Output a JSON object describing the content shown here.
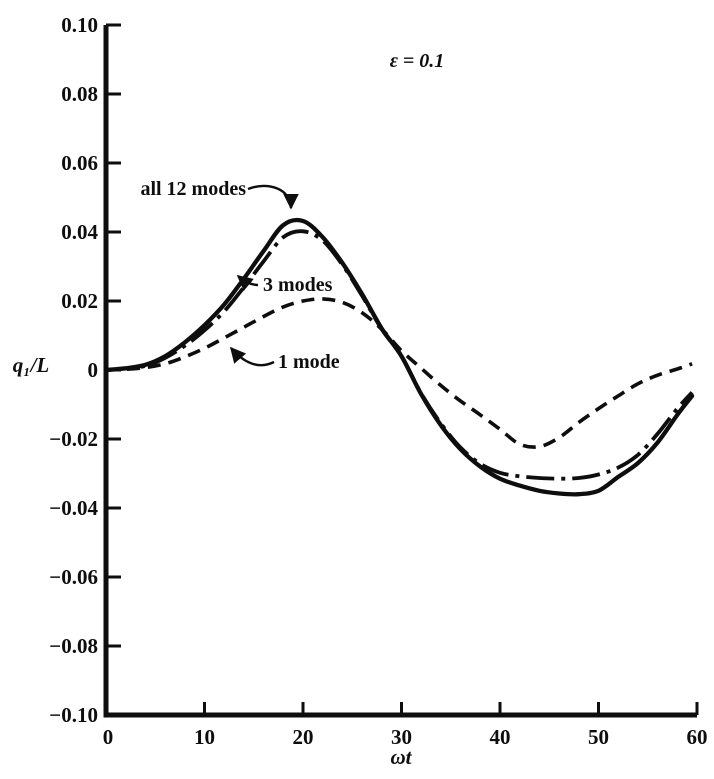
{
  "figure": {
    "background": "#ffffff",
    "ink": "#0e0e0e"
  },
  "chart_data": {
    "type": "line",
    "title": "",
    "xlabel": "ωt",
    "ylabel": "q₁/L",
    "xlim": [
      0,
      60
    ],
    "ylim": [
      -0.1,
      0.1
    ],
    "grid": false,
    "legend_position": "inline-annotations",
    "x_ticks": [
      0,
      10,
      20,
      30,
      40,
      50,
      60
    ],
    "x_tick_labels": [
      "0",
      "10",
      "20",
      "30",
      "40",
      "50",
      "60"
    ],
    "y_ticks": [
      0.1,
      0.08,
      0.06,
      0.04,
      0.02,
      0,
      -0.02,
      -0.04,
      -0.06,
      -0.08,
      -0.1
    ],
    "y_tick_labels": [
      "0.10",
      "0.08",
      "0.06",
      "0.04",
      "0.02",
      "0",
      "−0.02",
      "−0.04",
      "−0.06",
      "−0.08",
      "−0.10"
    ],
    "annotations": {
      "epsilon": {
        "text": "ε = 0.1"
      }
    },
    "series": [
      {
        "name": "all 12 modes",
        "style": "solid",
        "x": [
          0,
          2,
          4,
          6,
          8,
          10,
          12,
          14,
          16,
          18,
          20,
          22,
          24,
          26,
          28,
          30,
          32,
          34,
          36,
          38,
          40,
          42,
          44,
          46,
          48,
          50,
          52,
          54,
          56,
          58,
          59.5
        ],
        "y": [
          0,
          0.0005,
          0.0015,
          0.004,
          0.008,
          0.013,
          0.019,
          0.0265,
          0.0345,
          0.042,
          0.0432,
          0.0385,
          0.031,
          0.022,
          0.012,
          0.004,
          -0.007,
          -0.016,
          -0.023,
          -0.028,
          -0.0315,
          -0.0335,
          -0.035,
          -0.0358,
          -0.036,
          -0.035,
          -0.031,
          -0.027,
          -0.021,
          -0.013,
          -0.0075
        ]
      },
      {
        "name": "3 modes",
        "style": "dash-dot",
        "x": [
          0,
          2,
          4,
          6,
          8,
          10,
          12,
          14,
          16,
          18,
          20,
          22,
          24,
          26,
          28,
          30,
          32,
          34,
          36,
          38,
          40,
          42,
          44,
          46,
          48,
          50,
          52,
          54,
          56,
          58,
          59.5
        ],
        "y": [
          0,
          0.0004,
          0.0012,
          0.0035,
          0.007,
          0.0115,
          0.017,
          0.024,
          0.0315,
          0.0385,
          0.0402,
          0.0375,
          0.0305,
          0.0215,
          0.0118,
          0.004,
          -0.0068,
          -0.0155,
          -0.0225,
          -0.0272,
          -0.0298,
          -0.0308,
          -0.0313,
          -0.0315,
          -0.0313,
          -0.0303,
          -0.0283,
          -0.0246,
          -0.0185,
          -0.0112,
          -0.0065
        ]
      },
      {
        "name": "1 mode",
        "style": "dashed",
        "x": [
          0,
          2,
          4,
          6,
          8,
          10,
          12,
          14,
          16,
          18,
          20,
          22,
          24,
          26,
          28,
          30,
          32,
          34,
          36,
          38,
          40,
          42,
          44,
          46,
          48,
          50,
          52,
          54,
          56,
          58,
          59.5
        ],
        "y": [
          0,
          0.0002,
          0.0007,
          0.0018,
          0.0038,
          0.0063,
          0.0093,
          0.0124,
          0.0155,
          0.0183,
          0.02,
          0.0206,
          0.0196,
          0.0166,
          0.0118,
          0.0056,
          0.0005,
          -0.0045,
          -0.009,
          -0.013,
          -0.0172,
          -0.0215,
          -0.0222,
          -0.0196,
          -0.0152,
          -0.0112,
          -0.0075,
          -0.004,
          -0.0015,
          0.0003,
          0.0018
        ]
      }
    ]
  }
}
